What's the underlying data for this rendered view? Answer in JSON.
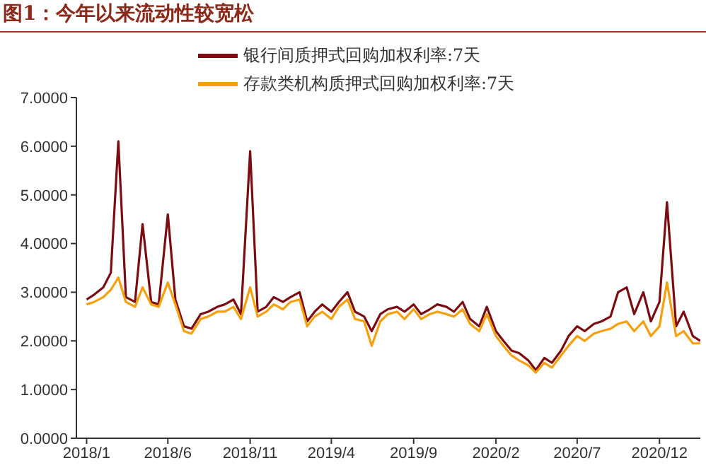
{
  "chart_data": {
    "type": "line",
    "title": "图1：今年以来流动性较宽松",
    "x": [
      "2018-01-01",
      "2018-01-15",
      "2018-02-01",
      "2018-02-15",
      "2018-03-01",
      "2018-03-15",
      "2018-04-01",
      "2018-04-15",
      "2018-05-01",
      "2018-05-15",
      "2018-06-01",
      "2018-06-15",
      "2018-07-01",
      "2018-07-15",
      "2018-08-01",
      "2018-08-15",
      "2018-09-01",
      "2018-09-15",
      "2018-10-01",
      "2018-10-15",
      "2018-11-01",
      "2018-11-15",
      "2018-12-01",
      "2018-12-15",
      "2019-01-01",
      "2019-01-15",
      "2019-02-01",
      "2019-02-15",
      "2019-03-01",
      "2019-03-15",
      "2019-04-01",
      "2019-04-15",
      "2019-05-01",
      "2019-05-15",
      "2019-06-01",
      "2019-06-15",
      "2019-07-01",
      "2019-07-15",
      "2019-08-01",
      "2019-08-15",
      "2019-09-01",
      "2019-09-15",
      "2019-10-01",
      "2019-10-15",
      "2019-11-01",
      "2019-11-15",
      "2019-12-01",
      "2019-12-15",
      "2020-01-01",
      "2020-01-15",
      "2020-02-01",
      "2020-02-15",
      "2020-03-01",
      "2020-03-15",
      "2020-04-01",
      "2020-04-15",
      "2020-05-01",
      "2020-05-15",
      "2020-06-01",
      "2020-06-15",
      "2020-07-01",
      "2020-07-15",
      "2020-08-01",
      "2020-08-15",
      "2020-09-01",
      "2020-09-15",
      "2020-10-01",
      "2020-10-15",
      "2020-11-01",
      "2020-11-15",
      "2020-12-01",
      "2020-12-15",
      "2021-01-01",
      "2021-01-15",
      "2021-02-01",
      "2021-02-15"
    ],
    "series": [
      {
        "name": "银行间质押式回购加权利率:7天",
        "color": "#7b0c12",
        "values": [
          2.85,
          2.95,
          3.1,
          3.4,
          6.1,
          2.9,
          2.8,
          4.4,
          2.8,
          2.75,
          4.6,
          2.85,
          2.3,
          2.25,
          2.55,
          2.6,
          2.7,
          2.75,
          2.85,
          2.55,
          5.9,
          2.6,
          2.7,
          2.9,
          2.8,
          2.9,
          3.0,
          2.4,
          2.6,
          2.75,
          2.6,
          2.8,
          3.0,
          2.6,
          2.5,
          2.2,
          2.55,
          2.65,
          2.7,
          2.6,
          2.75,
          2.55,
          2.65,
          2.75,
          2.7,
          2.6,
          2.8,
          2.45,
          2.3,
          2.7,
          2.2,
          2.0,
          1.8,
          1.75,
          1.6,
          1.4,
          1.65,
          1.55,
          1.8,
          2.1,
          2.3,
          2.2,
          2.35,
          2.4,
          2.5,
          3.0,
          3.1,
          2.55,
          3.0,
          2.4,
          2.8,
          4.85,
          2.3,
          2.6,
          2.1,
          2.0
        ]
      },
      {
        "name": "存款类机构质押式回购加权利率:7天",
        "color": "#f5a00f",
        "values": [
          2.75,
          2.8,
          2.9,
          3.05,
          3.3,
          2.8,
          2.7,
          3.1,
          2.75,
          2.7,
          3.2,
          2.75,
          2.2,
          2.15,
          2.45,
          2.5,
          2.6,
          2.6,
          2.7,
          2.45,
          3.1,
          2.5,
          2.6,
          2.75,
          2.65,
          2.8,
          2.85,
          2.3,
          2.5,
          2.6,
          2.45,
          2.7,
          2.85,
          2.45,
          2.4,
          1.9,
          2.4,
          2.55,
          2.6,
          2.45,
          2.65,
          2.45,
          2.55,
          2.6,
          2.55,
          2.5,
          2.65,
          2.35,
          2.2,
          2.55,
          2.1,
          1.9,
          1.7,
          1.6,
          1.5,
          1.35,
          1.55,
          1.45,
          1.7,
          1.9,
          2.1,
          2.0,
          2.15,
          2.2,
          2.25,
          2.35,
          2.4,
          2.2,
          2.4,
          2.1,
          2.3,
          3.2,
          2.1,
          2.2,
          1.95,
          1.95
        ]
      }
    ],
    "xlim": [
      "2017-12-13",
      "2021-02-15"
    ],
    "xticks": [
      {
        "value": "2018-01-01",
        "label": "2018/1"
      },
      {
        "value": "2018-06-01",
        "label": "2018/6"
      },
      {
        "value": "2018-11-01",
        "label": "2018/11"
      },
      {
        "value": "2019-04-01",
        "label": "2019/4"
      },
      {
        "value": "2019-09-01",
        "label": "2019/9"
      },
      {
        "value": "2020-02-01",
        "label": "2020/2"
      },
      {
        "value": "2020-07-01",
        "label": "2020/7"
      },
      {
        "value": "2020-12-01",
        "label": "2020/12"
      }
    ],
    "ylim": [
      0,
      7
    ],
    "yticks": [
      {
        "value": 0,
        "label": "0.0000"
      },
      {
        "value": 1,
        "label": "1.0000"
      },
      {
        "value": 2,
        "label": "2.0000"
      },
      {
        "value": 3,
        "label": "3.0000"
      },
      {
        "value": 4,
        "label": "4.0000"
      },
      {
        "value": 5,
        "label": "5.0000"
      },
      {
        "value": 6,
        "label": "6.0000"
      },
      {
        "value": 7,
        "label": "7.0000"
      }
    ],
    "grid": false,
    "legend": "top",
    "marker": "none",
    "line_style": "solid"
  }
}
